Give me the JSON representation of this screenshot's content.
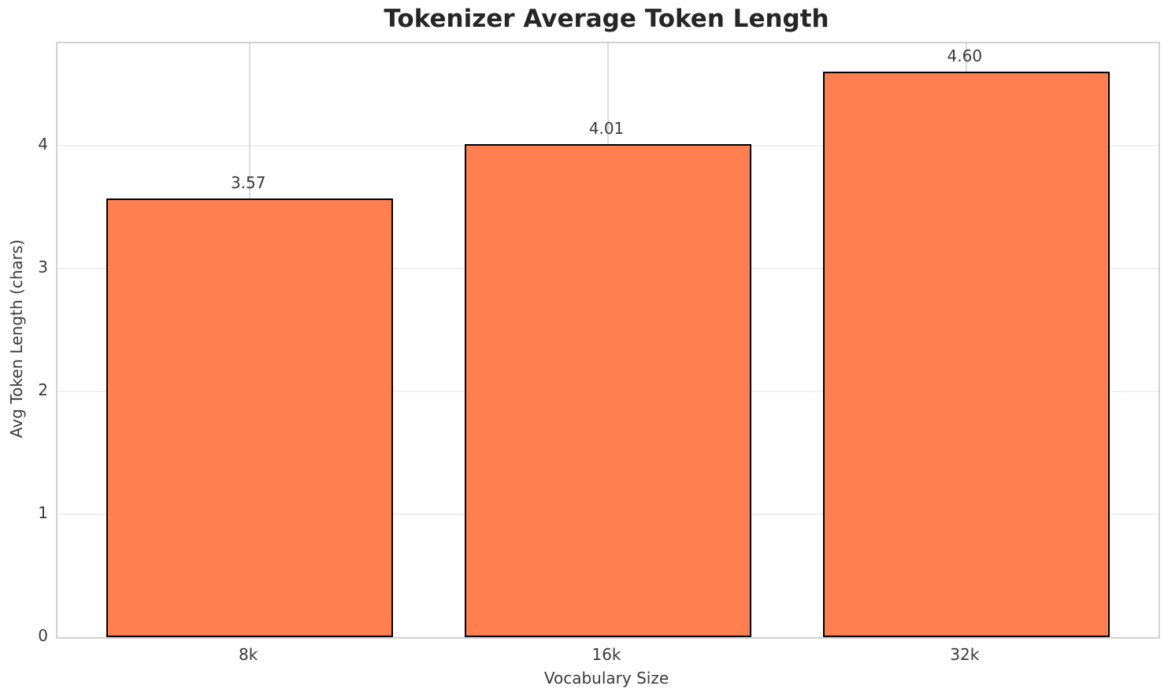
{
  "chart_data": {
    "type": "bar",
    "title": "Tokenizer Average Token Length",
    "xlabel": "Vocabulary Size",
    "ylabel": "Avg Token Length (chars)",
    "categories": [
      "8k",
      "16k",
      "32k"
    ],
    "values": [
      3.57,
      4.01,
      4.6
    ],
    "value_labels": [
      "3.57",
      "4.01",
      "4.60"
    ],
    "yticks": [
      0,
      1,
      2,
      3,
      4
    ],
    "ylim": [
      0,
      4.83
    ],
    "grid": "on",
    "legend_position": "none",
    "bar_color": "#FF7F50",
    "bar_edge_color": "#000000",
    "background_color": "#ffffff",
    "grid_color_horizontal": "#f0f0f0",
    "grid_color_vertical": "#dcdcdc",
    "spine_color": "#d2d2d2",
    "text_color": "#3a3a3a",
    "title_color": "#262626"
  }
}
